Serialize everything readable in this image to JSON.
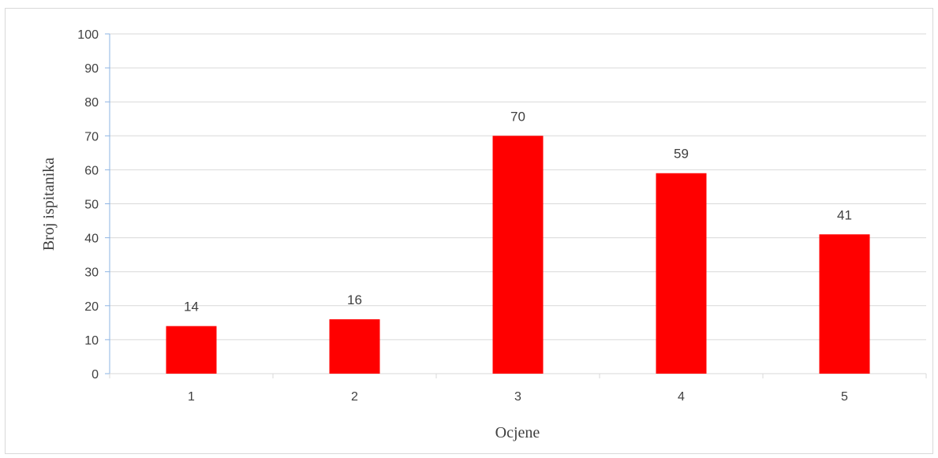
{
  "chart_data": {
    "type": "bar",
    "categories": [
      "1",
      "2",
      "3",
      "4",
      "5"
    ],
    "values": [
      14,
      16,
      70,
      59,
      41
    ],
    "xlabel": "Ocjene",
    "ylabel": "Broj ispitanika",
    "ylim": [
      0,
      100
    ],
    "yticks": [
      "0",
      "10",
      "20",
      "30",
      "40",
      "50",
      "60",
      "70",
      "80",
      "90",
      "100"
    ],
    "data_labels": [
      "14",
      "16",
      "70",
      "59",
      "41"
    ],
    "bar_color": "#ff0000",
    "gridlines": true,
    "legend": "none"
  }
}
